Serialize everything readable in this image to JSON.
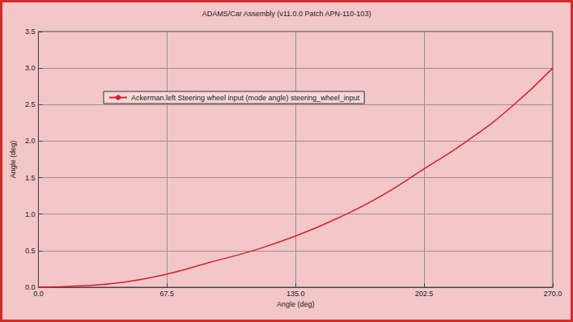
{
  "chart_data": {
    "type": "line",
    "title": "ADAMS/Car Assembly (v11.0.0 Patch APN-110-103)",
    "x_label": "Angle (deg)",
    "y_label": "Angle (deg)",
    "series": [
      {
        "name": "Ackerman.left Steering wheel input (mode angle) steering_wheel_input",
        "color": "#d8202a",
        "x": [
          0,
          22.5,
          45,
          67.5,
          90,
          112.5,
          135,
          157.5,
          180,
          202.5,
          225,
          247.5,
          270
        ],
        "values": [
          0,
          0.02,
          0.07,
          0.18,
          0.34,
          0.5,
          0.7,
          0.95,
          1.25,
          1.62,
          2.0,
          2.45,
          3.0
        ]
      }
    ],
    "xlim": [
      0,
      270
    ],
    "xticks": [
      {
        "value": 0,
        "label": "0.0"
      },
      {
        "value": 67.5,
        "label": "67.5"
      },
      {
        "value": 135,
        "label": "135.0"
      },
      {
        "value": 202.5,
        "label": "202.5"
      },
      {
        "value": 270,
        "label": "270.0"
      }
    ],
    "ylim": [
      0,
      3.5
    ],
    "yticks": [
      {
        "value": 0,
        "label": "0.0"
      },
      {
        "value": 0.5,
        "label": "0.5"
      },
      {
        "value": 1,
        "label": "1.0"
      },
      {
        "value": 1.5,
        "label": "1.5"
      },
      {
        "value": 2,
        "label": "2.0"
      },
      {
        "value": 2.5,
        "label": "2.5"
      },
      {
        "value": 3,
        "label": "3.0"
      },
      {
        "value": 3.5,
        "label": "3.5"
      }
    ],
    "grid": true,
    "legend": "upper left"
  }
}
